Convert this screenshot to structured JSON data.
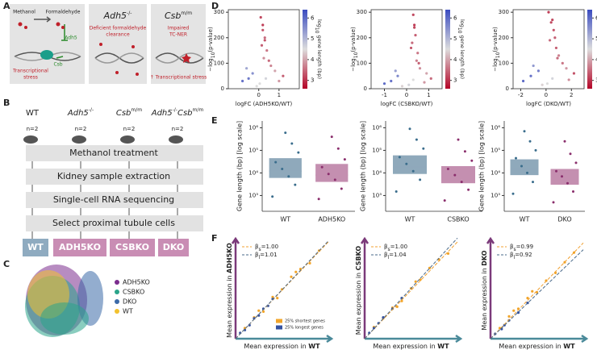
{
  "panel_a": {
    "label": "A",
    "methanol": "Methanol",
    "formaldehyde": "Formaldehyde",
    "adh5": "Adh5",
    "csb": "Csb",
    "stress": [
      "Transcriptional",
      "stress"
    ],
    "adh5_title": {
      "gene": "Adh5",
      "sup": "-/-"
    },
    "adh5_text": [
      "Deficient formaldehyde",
      "clearance"
    ],
    "csb_title": {
      "gene": "Csb",
      "sup": "m/m"
    },
    "csb_text": [
      "Impaired",
      "TC-NER"
    ],
    "csb_note": "↑ Transcriptional stress"
  },
  "panel_b": {
    "label": "B",
    "genotypes": [
      {
        "gene": "WT"
      },
      {
        "gene": "Adh5",
        "sup": "-/-"
      },
      {
        "gene": "Csb",
        "sup": "m/m"
      },
      {
        "gene": "Adh5",
        "sup": "-/-",
        "gene2": "Csb",
        "sup2": "m/m"
      }
    ],
    "n": [
      "n=2",
      "n=2",
      "n=2",
      "n=2"
    ],
    "steps": [
      "Methanol treatment",
      "Kidney sample extraction",
      "Single-cell RNA sequencing",
      "Select proximal tubule cells"
    ],
    "groups": [
      {
        "name": "WT",
        "color": "#8fabc0"
      },
      {
        "name": "ADH5KO",
        "color": "#c98db4"
      },
      {
        "name": "CSBKO",
        "color": "#c98db4"
      },
      {
        "name": "DKO",
        "color": "#c98db4"
      }
    ]
  },
  "panel_c": {
    "label": "C",
    "legend": [
      {
        "name": "ADH5KO",
        "color": "#7b2d8e"
      },
      {
        "name": "CSBKO",
        "color": "#2aa48a"
      },
      {
        "name": "DKO",
        "color": "#3b6aa8"
      },
      {
        "name": "WT",
        "color": "#f2c12e"
      }
    ]
  },
  "panel_d": {
    "label": "D",
    "charts": [
      {
        "type": "scatter",
        "x_label": "logFC (ADH5KO/WT)",
        "y_label": {
          "pre": "−log",
          "sub": "10",
          "post": "(p-value)"
        },
        "xlim": [
          -1.5,
          2
        ],
        "xticks": [
          0,
          1
        ],
        "ylim": [
          0,
          310
        ],
        "yticks": [
          0,
          100,
          200,
          300
        ],
        "colorbar": {
          "label": {
            "pre": "log",
            "sub": "10",
            "post": " gene length (bp)"
          },
          "lim": [
            2.6,
            6.4
          ],
          "ticks": [
            3,
            4,
            5,
            6
          ]
        },
        "x": [
          0.1,
          0.2,
          0.3,
          0.15,
          0.4,
          0.25,
          -0.3,
          -0.5,
          0.6,
          0.8,
          -0.8,
          1.2,
          0.05,
          0.35,
          -0.1,
          0.5,
          -0.6,
          1.0,
          0.2,
          0.3
        ],
        "y": [
          280,
          230,
          200,
          170,
          150,
          120,
          60,
          40,
          90,
          70,
          30,
          50,
          20,
          40,
          10,
          110,
          80,
          30,
          250,
          190
        ],
        "c": [
          3.2,
          3.3,
          3.5,
          3.4,
          3.6,
          3.8,
          5.5,
          5.8,
          3.7,
          4.0,
          5.9,
          3.4,
          4.5,
          4.6,
          4.5,
          3.5,
          5.2,
          3.9,
          3.1,
          3.3
        ]
      },
      {
        "type": "scatter",
        "x_label": "logFC (CSBKO/WT)",
        "y_label": {
          "pre": "−log",
          "sub": "10",
          "post": "(p-value)"
        },
        "xlim": [
          -1.6,
          1.6
        ],
        "xticks": [
          -1,
          0,
          1
        ],
        "ylim": [
          0,
          310
        ],
        "yticks": [
          0,
          100,
          200,
          300
        ],
        "colorbar": {
          "label": {
            "pre": "log",
            "sub": "10",
            "post": " gene length (bp)"
          },
          "lim": [
            2.6,
            6.4
          ],
          "ticks": [
            3,
            4,
            5,
            6
          ]
        },
        "x": [
          0.3,
          0.35,
          0.4,
          0.25,
          0.5,
          0.45,
          -0.4,
          -0.7,
          0.6,
          0.9,
          -1.0,
          1.1,
          0.1,
          0.3,
          -0.2,
          0.55,
          -0.5,
          0.8,
          0.35,
          0.2
        ],
        "y": [
          290,
          250,
          210,
          180,
          140,
          110,
          50,
          30,
          80,
          60,
          20,
          40,
          15,
          35,
          10,
          100,
          70,
          25,
          240,
          160
        ],
        "c": [
          3.2,
          3.1,
          3.4,
          3.5,
          3.6,
          3.7,
          5.6,
          5.9,
          3.8,
          4.0,
          6.0,
          3.5,
          4.6,
          4.5,
          4.4,
          3.4,
          5.3,
          3.9,
          3.2,
          3.3
        ]
      },
      {
        "type": "scatter",
        "x_label": "logFC (DKO/WT)",
        "y_label": {
          "pre": "−log",
          "sub": "10",
          "post": "(p-value)"
        },
        "xlim": [
          -2.6,
          3
        ],
        "xticks": [
          -2,
          0,
          2
        ],
        "ylim": [
          0,
          310
        ],
        "yticks": [
          0,
          100,
          200,
          300
        ],
        "colorbar": {
          "label": {
            "pre": "log",
            "sub": "10",
            "post": " gene length (bp)"
          },
          "lim": [
            2.6,
            6.4
          ],
          "ticks": [
            3,
            4,
            5,
            6
          ]
        },
        "x": [
          0.2,
          0.4,
          0.6,
          0.3,
          0.8,
          1.0,
          -0.6,
          -1.2,
          1.3,
          1.6,
          -1.8,
          2.2,
          0.1,
          0.5,
          -0.3,
          0.9,
          -1.0,
          1.8,
          0.5,
          0.7
        ],
        "y": [
          300,
          260,
          230,
          190,
          160,
          130,
          70,
          50,
          100,
          80,
          30,
          60,
          20,
          40,
          15,
          120,
          90,
          35,
          270,
          200
        ],
        "c": [
          3.1,
          3.2,
          3.3,
          3.5,
          3.4,
          3.7,
          5.7,
          5.9,
          3.6,
          3.9,
          6.0,
          3.3,
          4.5,
          4.6,
          4.4,
          3.5,
          5.4,
          3.8,
          3.2,
          3.4
        ]
      }
    ]
  },
  "panel_e": {
    "label": "E",
    "charts": [
      {
        "type": "box",
        "y_label": "Gene length (bp) [log scale]",
        "log": true,
        "ylim": [
          200,
          2000000
        ],
        "yticks": [
          {
            "value": 1000,
            "label": "10³"
          },
          {
            "value": 10000,
            "label": "10⁴"
          },
          {
            "value": 100000,
            "label": "10⁵"
          },
          {
            "value": 1000000,
            "label": "10⁶"
          }
        ],
        "categories": [
          "WT",
          "ADH5KO"
        ],
        "box_colors": [
          "#8fa9bb",
          "#c48fb0"
        ],
        "point_colors": [
          "#3a6d8c",
          "#8a2e6c"
        ],
        "q1": [
          6000,
          4000
        ],
        "median": [
          12000,
          8000
        ],
        "q3": [
          45000,
          25000
        ],
        "points": [
          [
            900,
            3000,
            7000,
            15000,
            30000,
            80000,
            200000,
            600000
          ],
          [
            700,
            2000,
            5000,
            9000,
            18000,
            40000,
            120000,
            400000
          ]
        ]
      },
      {
        "type": "box",
        "y_label": "Gene length (bp) [log scale]",
        "log": true,
        "ylim": [
          200,
          2000000
        ],
        "yticks": [
          {
            "value": 1000,
            "label": "10³"
          },
          {
            "value": 10000,
            "label": "10⁴"
          },
          {
            "value": 100000,
            "label": "10⁵"
          },
          {
            "value": 1000000,
            "label": "10⁶"
          }
        ],
        "categories": [
          "WT",
          "CSBKO"
        ],
        "box_colors": [
          "#8fa9bb",
          "#c48fb0"
        ],
        "point_colors": [
          "#3a6d8c",
          "#8a2e6c"
        ],
        "q1": [
          9000,
          3500
        ],
        "median": [
          18000,
          7000
        ],
        "q3": [
          60000,
          20000
        ],
        "points": [
          [
            1500,
            5000,
            12000,
            25000,
            50000,
            120000,
            300000,
            900000
          ],
          [
            600,
            1800,
            4000,
            8000,
            15000,
            35000,
            90000,
            300000
          ]
        ]
      },
      {
        "type": "box",
        "y_label": "Gene length (bp) [log scale]",
        "log": true,
        "ylim": [
          200,
          2000000
        ],
        "yticks": [
          {
            "value": 1000,
            "label": "10³"
          },
          {
            "value": 10000,
            "label": "10⁴"
          },
          {
            "value": 100000,
            "label": "10⁵"
          },
          {
            "value": 1000000,
            "label": "10⁶"
          }
        ],
        "categories": [
          "WT",
          "DKO"
        ],
        "box_colors": [
          "#8fa9bb",
          "#c48fb0"
        ],
        "point_colors": [
          "#3a6d8c",
          "#8a2e6c"
        ],
        "q1": [
          8000,
          3000
        ],
        "median": [
          15000,
          6000
        ],
        "q3": [
          40000,
          15000
        ],
        "points": [
          [
            1200,
            4000,
            10000,
            20000,
            45000,
            100000,
            250000,
            700000
          ],
          [
            500,
            1500,
            3500,
            7000,
            12000,
            28000,
            70000,
            250000
          ]
        ]
      }
    ]
  },
  "panel_f": {
    "label": "F",
    "charts": [
      {
        "type": "scatter",
        "x_label": {
          "text": "Mean expression in ",
          "bold": "WT"
        },
        "y_label": {
          "text": "Mean expression in ",
          "bold": "ADH5KO"
        },
        "xlim": [
          0,
          10
        ],
        "ylim": [
          0,
          10
        ],
        "fits": [
          {
            "text": "=1.00",
            "sym": "β",
            "sub": "s",
            "color": "#f0a030",
            "y_end": 10
          },
          {
            "text": "=1.01",
            "sym": "β",
            "sub": "l",
            "color": "#4a6a8a",
            "y_end": 10.1
          }
        ],
        "series": [
          {
            "name": "25% shortest genes",
            "color": "#f2a52a",
            "x": [
              1,
              2,
              3,
              4,
              5,
              6,
              7,
              8,
              9,
              2.5,
              4.5,
              6.5
            ],
            "y": [
              1.1,
              2.2,
              2.8,
              4.3,
              5.1,
              6.4,
              7.2,
              7.8,
              9.1,
              2.9,
              4.2,
              6.9
            ]
          },
          {
            "name": "25% longest genes",
            "color": "#3552a0",
            "x": [
              0.5,
              1.5,
              2,
              3,
              3.5,
              4,
              1,
              2.5
            ],
            "y": [
              0.6,
              1.4,
              2.1,
              3.1,
              3.4,
              4.1,
              0.9,
              2.4
            ]
          }
        ]
      },
      {
        "type": "scatter",
        "x_label": {
          "text": "Mean expression in ",
          "bold": "WT"
        },
        "y_label": {
          "text": "Mean expression in ",
          "bold": "CSBKO"
        },
        "xlim": [
          0,
          10
        ],
        "ylim": [
          0,
          10
        ],
        "fits": [
          {
            "text": "=1.00",
            "sym": "β",
            "sub": "s",
            "color": "#f0a030",
            "y_end": 10
          },
          {
            "text": "=1.04",
            "sym": "β",
            "sub": "l",
            "color": "#4a6a8a",
            "y_end": 10.4
          }
        ],
        "series": [
          {
            "color": "#f2a52a",
            "x": [
              1,
              2,
              3,
              4,
              5,
              6,
              7,
              8,
              9,
              3.5,
              5.5
            ],
            "y": [
              1.2,
              2.1,
              3.2,
              3.9,
              5.2,
              6.1,
              7.3,
              8.2,
              8.8,
              3.3,
              5.9
            ]
          },
          {
            "color": "#3552a0",
            "x": [
              0.5,
              1.5,
              2,
              3,
              4,
              1
            ],
            "y": [
              0.6,
              1.6,
              2.2,
              3.1,
              4.2,
              1.1
            ]
          }
        ]
      },
      {
        "type": "scatter",
        "x_label": {
          "text": "Mean expression in ",
          "bold": "WT"
        },
        "y_label": {
          "text": "Mean expression in ",
          "bold": "DKO"
        },
        "xlim": [
          0,
          10
        ],
        "ylim": [
          0,
          10
        ],
        "fits": [
          {
            "text": "=0.99",
            "sym": "β",
            "sub": "s",
            "color": "#f0a030",
            "y_end": 9.9
          },
          {
            "text": "=0.92",
            "sym": "β",
            "sub": "l",
            "color": "#4a6a8a",
            "y_end": 9.2
          }
        ],
        "series": [
          {
            "color": "#f2a52a",
            "x": [
              1,
              2,
              3,
              4,
              5,
              6,
              7,
              8,
              9,
              2.5,
              4.5
            ],
            "y": [
              1.1,
              2.3,
              3.1,
              4.2,
              4.8,
              6.0,
              6.8,
              7.9,
              8.9,
              2.9,
              4.9
            ]
          },
          {
            "color": "#3552a0",
            "x": [
              0.5,
              1.5,
              2,
              3,
              4,
              1.2
            ],
            "y": [
              0.5,
              1.4,
              1.9,
              2.7,
              3.7,
              1.0
            ]
          }
        ]
      }
    ]
  }
}
